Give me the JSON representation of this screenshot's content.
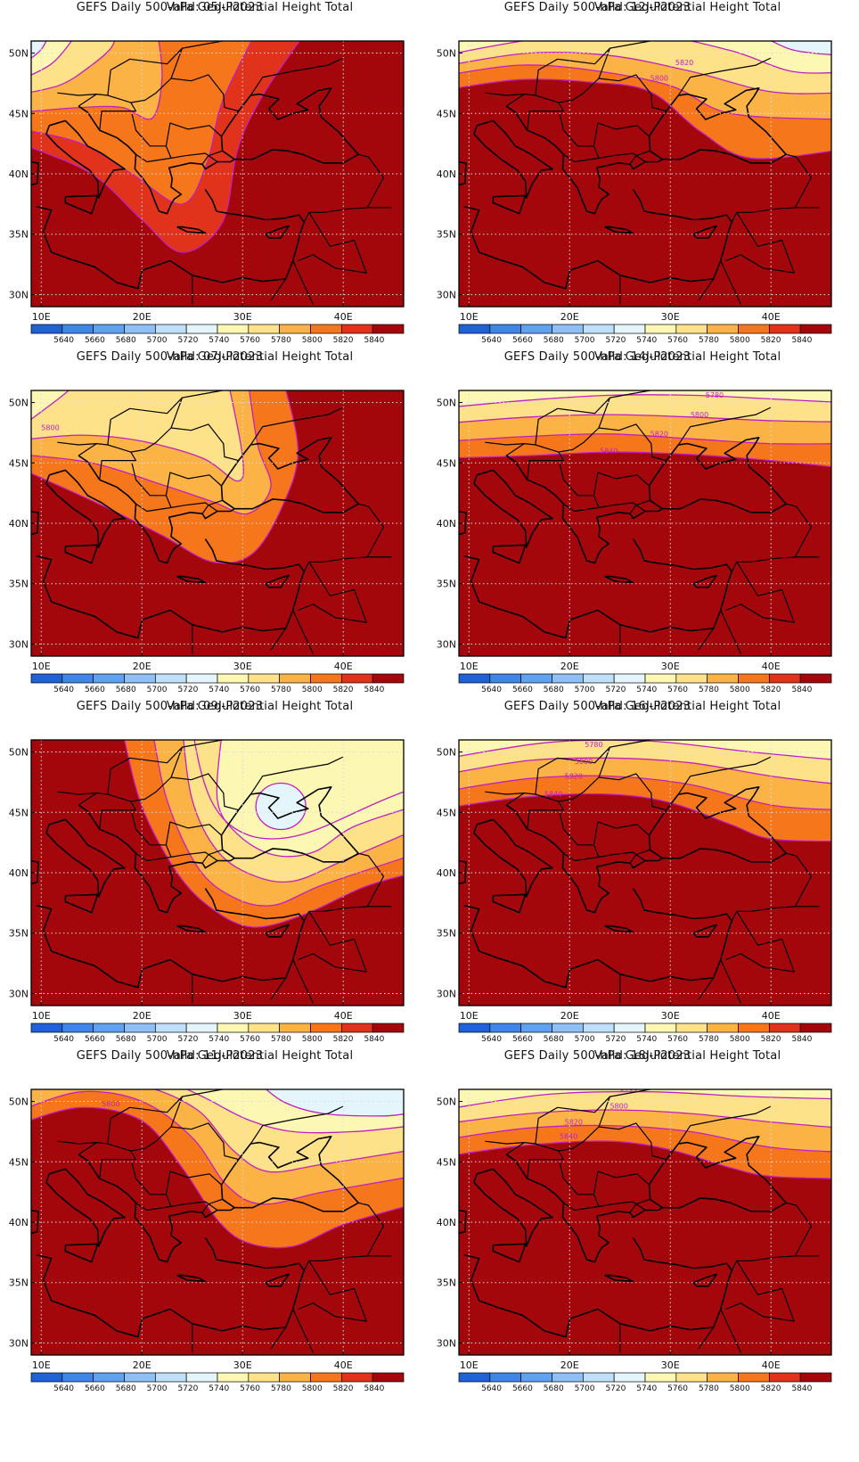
{
  "panels": [
    {
      "title": "GEFS Daily 500-hPa Geo-Potential Height Total",
      "valid": "Valid: 05Jul2023",
      "contour_labels": []
    },
    {
      "title": "GEFS Daily 500-hPa Geo-Potential Height Total",
      "valid": "Valid: 12Jul2023",
      "contour_labels": [
        "5820",
        "5800"
      ]
    },
    {
      "title": "GEFS Daily 500-hPa Geo-Potential Height Total",
      "valid": "Valid: 07Jul2023",
      "contour_labels": [
        "5800"
      ]
    },
    {
      "title": "GEFS Daily 500-hPa Geo-Potential Height Total",
      "valid": "Valid: 14Jul2023",
      "contour_labels": [
        "5780",
        "5800",
        "5820",
        "5840"
      ]
    },
    {
      "title": "GEFS Daily 500-hPa Geo-Potential Height Total",
      "valid": "Valid: 09Jul2023",
      "contour_labels": []
    },
    {
      "title": "GEFS Daily 500-hPa Geo-Potential Height Total",
      "valid": "Valid: 16Jul2023",
      "contour_labels": [
        "5780",
        "5800",
        "5820",
        "5840"
      ]
    },
    {
      "title": "GEFS Daily 500-hPa Geo-Potential Height Total",
      "valid": "Valid: 11Jul2023",
      "contour_labels": [
        "5800"
      ]
    },
    {
      "title": "GEFS Daily 500-hPa Geo-Potential Height Total",
      "valid": "Valid: 18Jul2023",
      "contour_labels": [
        "5780",
        "5800",
        "5820",
        "5840"
      ]
    }
  ],
  "axes": {
    "lat_ticks": [
      "30N",
      "35N",
      "40N",
      "45N",
      "50N"
    ],
    "lon_ticks": [
      "10E",
      "20E",
      "30E",
      "40E"
    ]
  },
  "colorbar": {
    "labels": [
      "5640",
      "5660",
      "5680",
      "5700",
      "5720",
      "5740",
      "5760",
      "5780",
      "5800",
      "5820",
      "5840"
    ],
    "colors": [
      "#1f62d6",
      "#3f86e8",
      "#5fa2f2",
      "#8fc0f5",
      "#bfe0f8",
      "#e4f6fb",
      "#fdf7b4",
      "#fde28a",
      "#fcb346",
      "#f6761c",
      "#e1321c",
      "#a3070b"
    ]
  },
  "contour_color": "#c21fc2"
}
